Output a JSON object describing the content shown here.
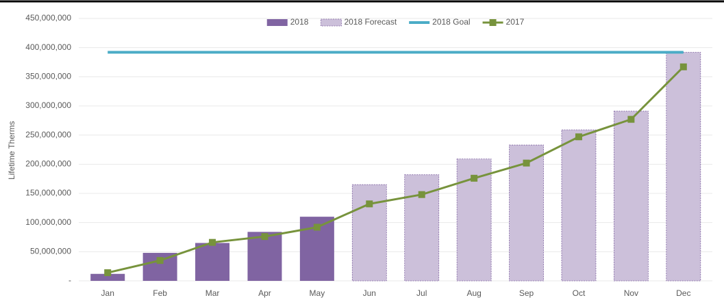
{
  "chart_data": {
    "type": "bar",
    "y_axis_label": "Lifetime Therms",
    "categories": [
      "Jan",
      "Feb",
      "Mar",
      "Apr",
      "May",
      "Jun",
      "Jul",
      "Aug",
      "Sep",
      "Oct",
      "Nov",
      "Dec"
    ],
    "series": [
      {
        "name": "2018",
        "type": "bar",
        "color": "#8064a2",
        "values": [
          12000000,
          48000000,
          65000000,
          84000000,
          110000000,
          null,
          null,
          null,
          null,
          null,
          null,
          null
        ]
      },
      {
        "name": "2018 Forecast",
        "type": "bar",
        "color": "#ccc0da",
        "border_color": "#8064a2",
        "border_style": "dashed",
        "values": [
          null,
          null,
          null,
          null,
          null,
          165000000,
          182000000,
          209000000,
          233000000,
          259000000,
          291000000,
          392000000
        ]
      },
      {
        "name": "2018 Goal",
        "type": "line",
        "color": "#4bacc6",
        "values": [
          392000000,
          392000000,
          392000000,
          392000000,
          392000000,
          392000000,
          392000000,
          392000000,
          392000000,
          392000000,
          392000000,
          392000000
        ]
      },
      {
        "name": "2017",
        "type": "line",
        "color": "#77933c",
        "marker": "square",
        "values": [
          14000000,
          35000000,
          66000000,
          76000000,
          92000000,
          132000000,
          148000000,
          176000000,
          202000000,
          247000000,
          277000000,
          367000000
        ]
      }
    ],
    "ylim": [
      0,
      450000000
    ],
    "yticks": [
      {
        "value": 0,
        "label": "-"
      },
      {
        "value": 50000000,
        "label": "50,000,000"
      },
      {
        "value": 100000000,
        "label": "100,000,000"
      },
      {
        "value": 150000000,
        "label": "150,000,000"
      },
      {
        "value": 200000000,
        "label": "200,000,000"
      },
      {
        "value": 250000000,
        "label": "250,000,000"
      },
      {
        "value": 300000000,
        "label": "300,000,000"
      },
      {
        "value": 350000000,
        "label": "350,000,000"
      },
      {
        "value": 400000000,
        "label": "400,000,000"
      },
      {
        "value": 450000000,
        "label": "450,000,000"
      }
    ],
    "grid": true,
    "legend": "top"
  }
}
